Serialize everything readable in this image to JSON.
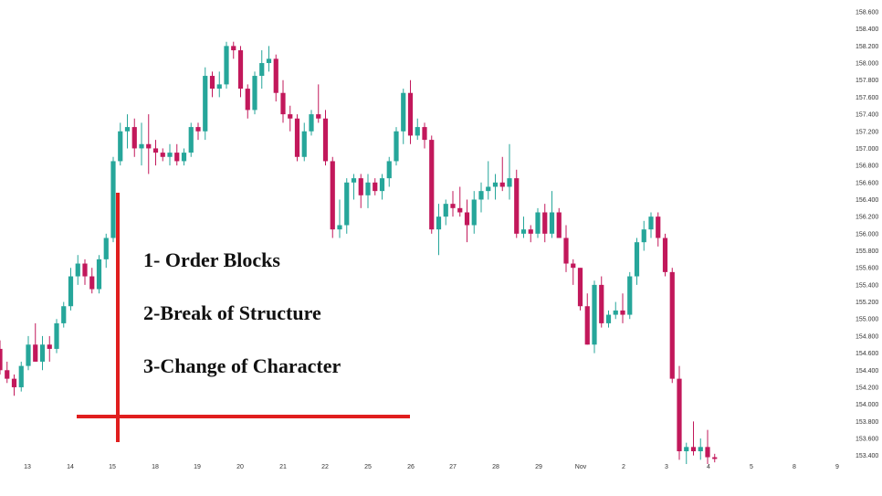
{
  "annotations": {
    "line1": "1- Order Blocks",
    "line2": "2-Break of Structure",
    "line3": "3-Change of Character"
  },
  "chart_data": {
    "type": "candlestick",
    "ylim": [
      153.3,
      158.65
    ],
    "y_ticks": [
      "158.600",
      "158.400",
      "158.200",
      "158.000",
      "157.800",
      "157.600",
      "157.400",
      "157.200",
      "157.000",
      "156.800",
      "156.600",
      "156.400",
      "156.200",
      "156.000",
      "155.800",
      "155.600",
      "155.400",
      "155.200",
      "155.000",
      "154.800",
      "154.600",
      "154.400",
      "154.200",
      "154.000",
      "153.800",
      "153.600",
      "153.400"
    ],
    "x_ticks": [
      "13",
      "14",
      "15",
      "18",
      "19",
      "20",
      "21",
      "22",
      "25",
      "26",
      "27",
      "28",
      "29",
      "Nov",
      "2",
      "3",
      "4",
      "5",
      "8",
      "9"
    ],
    "colors": {
      "up": "#26a69a",
      "down": "#c2185b",
      "annotation_line": "#e01e1e"
    },
    "candles": [
      [
        154.65,
        154.75,
        154.35,
        154.4
      ],
      [
        154.4,
        154.5,
        154.25,
        154.3
      ],
      [
        154.3,
        154.35,
        154.1,
        154.2
      ],
      [
        154.2,
        154.5,
        154.15,
        154.45
      ],
      [
        154.45,
        154.8,
        154.4,
        154.7
      ],
      [
        154.7,
        154.95,
        154.5,
        154.5
      ],
      [
        154.5,
        154.8,
        154.4,
        154.7
      ],
      [
        154.7,
        154.8,
        154.5,
        154.65
      ],
      [
        154.65,
        155.0,
        154.6,
        154.95
      ],
      [
        154.95,
        155.2,
        154.9,
        155.15
      ],
      [
        155.15,
        155.6,
        155.1,
        155.5
      ],
      [
        155.5,
        155.75,
        155.4,
        155.65
      ],
      [
        155.65,
        155.7,
        155.4,
        155.5
      ],
      [
        155.5,
        155.6,
        155.3,
        155.35
      ],
      [
        155.35,
        155.75,
        155.3,
        155.7
      ],
      [
        155.7,
        156.0,
        155.6,
        155.95
      ],
      [
        155.95,
        156.9,
        155.9,
        156.85
      ],
      [
        156.85,
        157.3,
        156.8,
        157.2
      ],
      [
        157.2,
        157.4,
        157.0,
        157.25
      ],
      [
        157.25,
        157.35,
        156.9,
        157.0
      ],
      [
        157.0,
        157.3,
        156.8,
        157.05
      ],
      [
        157.05,
        157.4,
        156.7,
        157.0
      ],
      [
        157.0,
        157.1,
        156.8,
        156.95
      ],
      [
        156.95,
        157.0,
        156.85,
        156.9
      ],
      [
        156.9,
        157.05,
        156.8,
        156.95
      ],
      [
        156.95,
        157.05,
        156.8,
        156.85
      ],
      [
        156.85,
        157.0,
        156.8,
        156.95
      ],
      [
        156.95,
        157.3,
        156.9,
        157.25
      ],
      [
        157.25,
        157.3,
        157.1,
        157.2
      ],
      [
        157.2,
        157.95,
        157.1,
        157.85
      ],
      [
        157.85,
        157.9,
        157.6,
        157.7
      ],
      [
        157.7,
        157.9,
        157.6,
        157.75
      ],
      [
        157.75,
        158.25,
        157.7,
        158.2
      ],
      [
        158.2,
        158.25,
        158.05,
        158.15
      ],
      [
        158.15,
        158.2,
        157.6,
        157.7
      ],
      [
        157.7,
        157.75,
        157.35,
        157.45
      ],
      [
        157.45,
        157.9,
        157.4,
        157.85
      ],
      [
        157.85,
        158.15,
        157.7,
        158.0
      ],
      [
        158.0,
        158.2,
        157.9,
        158.05
      ],
      [
        158.05,
        158.1,
        157.55,
        157.65
      ],
      [
        157.65,
        157.8,
        157.3,
        157.4
      ],
      [
        157.4,
        157.5,
        157.2,
        157.35
      ],
      [
        157.35,
        157.4,
        156.85,
        156.9
      ],
      [
        156.9,
        157.3,
        156.85,
        157.2
      ],
      [
        157.2,
        157.45,
        157.15,
        157.4
      ],
      [
        157.4,
        157.75,
        157.3,
        157.35
      ],
      [
        157.35,
        157.45,
        156.8,
        156.85
      ],
      [
        156.85,
        156.9,
        155.95,
        156.05
      ],
      [
        156.05,
        156.4,
        155.95,
        156.1
      ],
      [
        156.1,
        156.65,
        156.0,
        156.6
      ],
      [
        156.6,
        156.7,
        156.4,
        156.65
      ],
      [
        156.65,
        156.7,
        156.3,
        156.45
      ],
      [
        156.45,
        156.7,
        156.3,
        156.6
      ],
      [
        156.6,
        156.65,
        156.45,
        156.5
      ],
      [
        156.5,
        156.7,
        156.4,
        156.65
      ],
      [
        156.65,
        156.9,
        156.55,
        156.85
      ],
      [
        156.85,
        157.25,
        156.8,
        157.2
      ],
      [
        157.2,
        157.7,
        157.05,
        157.65
      ],
      [
        157.65,
        157.8,
        157.05,
        157.15
      ],
      [
        157.15,
        157.35,
        157.1,
        157.25
      ],
      [
        157.25,
        157.3,
        157.0,
        157.1
      ],
      [
        157.1,
        157.15,
        156.0,
        156.05
      ],
      [
        156.05,
        156.35,
        155.75,
        156.2
      ],
      [
        156.2,
        156.4,
        156.1,
        156.35
      ],
      [
        156.35,
        156.5,
        156.2,
        156.3
      ],
      [
        156.3,
        156.55,
        156.2,
        156.25
      ],
      [
        156.25,
        156.4,
        155.9,
        156.1
      ],
      [
        156.1,
        156.5,
        156.0,
        156.4
      ],
      [
        156.4,
        156.6,
        156.25,
        156.5
      ],
      [
        156.5,
        156.85,
        156.4,
        156.55
      ],
      [
        156.55,
        156.7,
        156.4,
        156.6
      ],
      [
        156.6,
        156.9,
        156.5,
        156.55
      ],
      [
        156.55,
        157.05,
        156.4,
        156.65
      ],
      [
        156.65,
        156.75,
        155.95,
        156.0
      ],
      [
        156.0,
        156.2,
        155.95,
        156.05
      ],
      [
        156.05,
        156.1,
        155.9,
        156.0
      ],
      [
        156.0,
        156.3,
        155.95,
        156.25
      ],
      [
        156.25,
        156.35,
        155.9,
        156.0
      ],
      [
        156.0,
        156.5,
        155.95,
        156.25
      ],
      [
        156.25,
        156.3,
        155.95,
        155.95
      ],
      [
        155.95,
        156.1,
        155.55,
        155.65
      ],
      [
        155.65,
        155.7,
        155.4,
        155.6
      ],
      [
        155.6,
        155.6,
        155.1,
        155.15
      ],
      [
        155.15,
        155.3,
        154.7,
        154.7
      ],
      [
        154.7,
        155.45,
        154.6,
        155.4
      ],
      [
        155.4,
        155.5,
        154.9,
        154.95
      ],
      [
        154.95,
        155.1,
        154.9,
        155.05
      ],
      [
        155.05,
        155.2,
        155.0,
        155.1
      ],
      [
        155.1,
        155.3,
        154.95,
        155.05
      ],
      [
        155.05,
        155.55,
        155.0,
        155.5
      ],
      [
        155.5,
        155.95,
        155.4,
        155.9
      ],
      [
        155.9,
        156.15,
        155.8,
        156.05
      ],
      [
        156.05,
        156.25,
        155.95,
        156.2
      ],
      [
        156.2,
        156.25,
        155.85,
        155.95
      ],
      [
        155.95,
        156.0,
        155.5,
        155.55
      ],
      [
        155.55,
        155.6,
        154.25,
        154.3
      ],
      [
        154.3,
        154.45,
        153.35,
        153.45
      ],
      [
        153.45,
        153.55,
        153.3,
        153.5
      ],
      [
        153.5,
        153.8,
        153.4,
        153.45
      ],
      [
        153.45,
        153.6,
        153.35,
        153.5
      ],
      [
        153.5,
        153.7,
        153.3,
        153.38
      ],
      [
        153.38,
        153.42,
        153.32,
        153.36
      ]
    ]
  }
}
